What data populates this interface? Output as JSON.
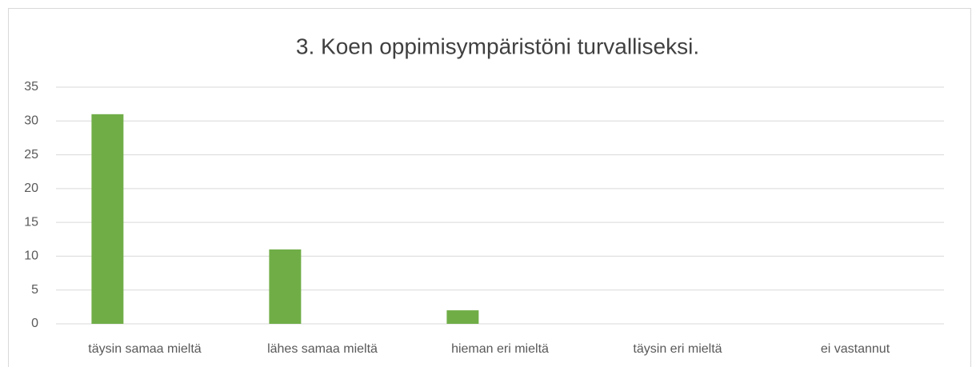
{
  "chart_data": {
    "type": "bar",
    "title": "3. Koen oppimisympäristöni turvalliseksi.",
    "categories": [
      "täysin samaa mieltä",
      "lähes samaa mieltä",
      "hieman eri mieltä",
      "täysin eri mieltä",
      "ei vastannut"
    ],
    "values": [
      31,
      11,
      2,
      0,
      0
    ],
    "color": "#70ad47",
    "ylim": [
      0,
      35
    ],
    "yticks": [
      0,
      5,
      10,
      15,
      20,
      25,
      30,
      35
    ],
    "grid": true
  }
}
